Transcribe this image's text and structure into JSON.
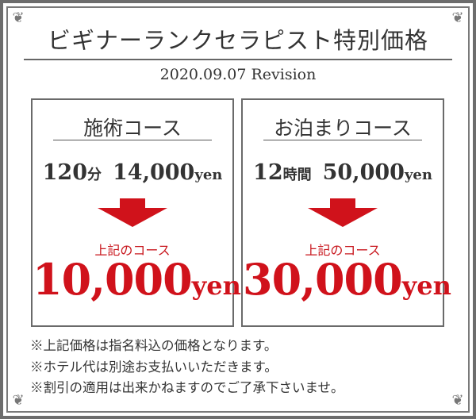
{
  "title": "ビギナーランクセラピスト特別価格",
  "revision": "2020.09.07 Revision",
  "courses": [
    {
      "name": "施術コース",
      "duration_num": "120",
      "duration_unit": "分",
      "orig_price": "14,000",
      "orig_unit": "yen",
      "label": "上記のコース",
      "new_price": "10,000",
      "new_unit": "yen"
    },
    {
      "name": "お泊まりコース",
      "duration_num": "12",
      "duration_unit": "時間",
      "orig_price": "50,000",
      "orig_unit": "yen",
      "label": "上記のコース",
      "new_price": "30,000",
      "new_unit": "yen"
    }
  ],
  "notes": [
    "※上記価格は指名料込の価格となります。",
    "※ホテル代は別途お支払いいただきます。",
    "※割引の適用は出来かねますのでご了承下さいませ。"
  ],
  "colors": {
    "accent": "#d0121b",
    "frame": "#6d6d6d",
    "text": "#333333"
  },
  "icons": {
    "arrow": "arrow-down-icon",
    "corner": "ornament-icon"
  }
}
